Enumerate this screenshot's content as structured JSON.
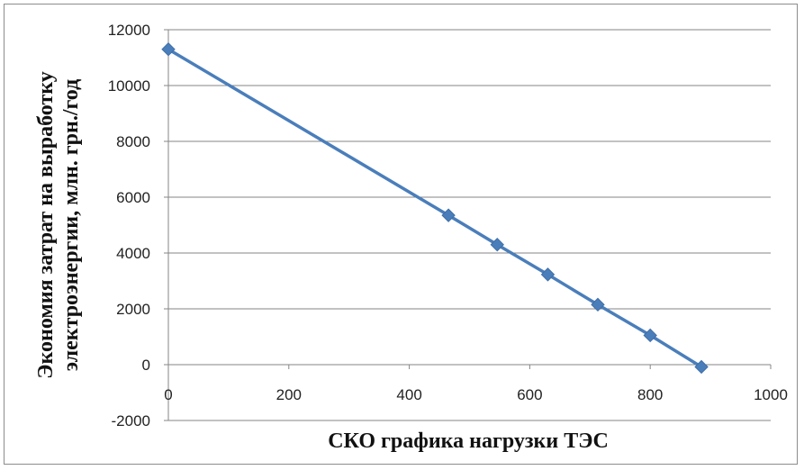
{
  "chart_data": {
    "type": "line",
    "title": "",
    "xlabel": "СКО графика нагрузки ТЭС",
    "ylabel_line1": "Экономия затрат на выработку",
    "ylabel_line2": "электроэнергии, млн. грн./год",
    "xlim": [
      0,
      1000
    ],
    "ylim": [
      -2000,
      12000
    ],
    "x_ticks": [
      0,
      200,
      400,
      600,
      800,
      1000
    ],
    "y_ticks": [
      -2000,
      0,
      2000,
      4000,
      6000,
      8000,
      10000,
      12000
    ],
    "grid": "horizontal",
    "legend": "none",
    "series": [
      {
        "color": "#4a7ebb",
        "marker": "diamond",
        "points": [
          {
            "x": 0,
            "y": 11300
          },
          {
            "x": 465,
            "y": 5350
          },
          {
            "x": 546,
            "y": 4300
          },
          {
            "x": 630,
            "y": 3230
          },
          {
            "x": 713,
            "y": 2150
          },
          {
            "x": 800,
            "y": 1050
          },
          {
            "x": 885,
            "y": -80
          }
        ]
      }
    ]
  }
}
